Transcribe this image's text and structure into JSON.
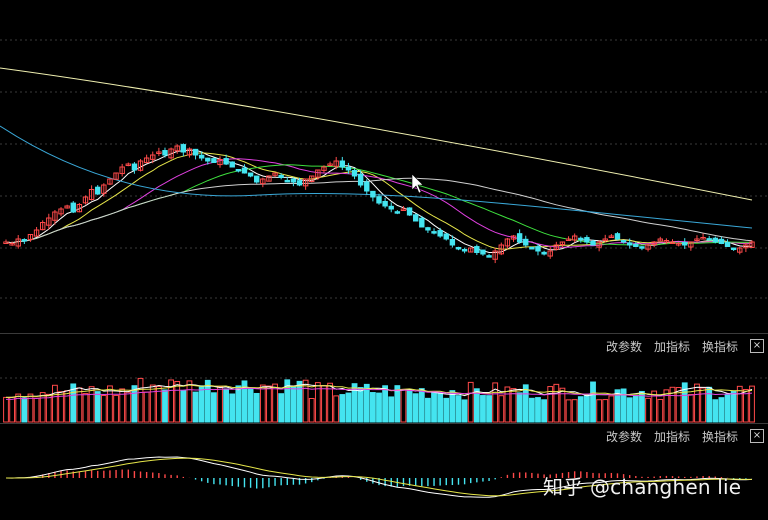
{
  "panels": {
    "toolbar_labels": [
      "改参数",
      "加指标",
      "换指标"
    ],
    "close_label": "×"
  },
  "watermark": "知乎 @changhen lie",
  "colors": {
    "up": "#ff4a4a",
    "down": "#44e4f0",
    "ma5": "#ffffff",
    "ma10": "#e6e64a",
    "ma20": "#e040e0",
    "ma30": "#3ee03e",
    "ma60": "#d0d0d0",
    "ma120": "#3aa8d8",
    "ma250": "#f0f0b0"
  },
  "chart_data": [
    {
      "type": "candlestick",
      "name_shown": false,
      "close": [
        20,
        19,
        22,
        21,
        25,
        28,
        33,
        36,
        40,
        42,
        44,
        40,
        45,
        50,
        55,
        52,
        58,
        62,
        66,
        70,
        72,
        68,
        74,
        76,
        78,
        80,
        78,
        82,
        84,
        80,
        82,
        78,
        76,
        74,
        73,
        75,
        72,
        70,
        68,
        66,
        64,
        60,
        62,
        64,
        66,
        63,
        61,
        60,
        58,
        62,
        64,
        68,
        70,
        72,
        74,
        70,
        68,
        64,
        58,
        54,
        50,
        46,
        44,
        42,
        40,
        42,
        38,
        34,
        30,
        28,
        26,
        24,
        22,
        18,
        16,
        14,
        16,
        13,
        12,
        10,
        14,
        18,
        22,
        24,
        20,
        18,
        16,
        14,
        12,
        14,
        18,
        20,
        22,
        24,
        22,
        20,
        18,
        20,
        22,
        24,
        22,
        20,
        18,
        17,
        16,
        18,
        20,
        22,
        21,
        20,
        19,
        18,
        20,
        22,
        23,
        22,
        20,
        19,
        17,
        15,
        16,
        18,
        20
      ],
      "ma_lines": [
        "MA5",
        "MA10",
        "MA20",
        "MA30",
        "MA60",
        "MA120",
        "MA250"
      ],
      "grid": true
    },
    {
      "type": "bar",
      "role": "volume",
      "grid": true
    },
    {
      "type": "bar",
      "role": "macd",
      "grid": false
    }
  ]
}
